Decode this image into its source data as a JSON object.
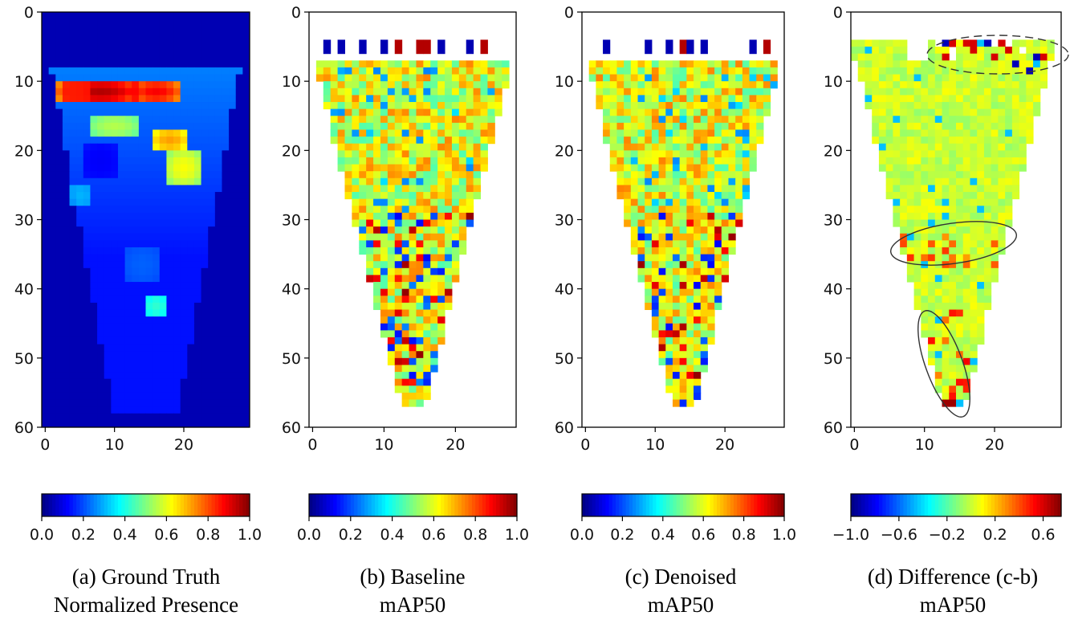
{
  "chart_data": [
    {
      "type": "heatmap",
      "title": "",
      "caption": [
        "(a) Ground Truth",
        "Normalized Presence"
      ],
      "x_ticks": [
        0,
        10,
        20
      ],
      "y_ticks": [
        0,
        10,
        20,
        30,
        40,
        50,
        60
      ],
      "xlim": [
        -0.5,
        29.5
      ],
      "ylim": [
        60,
        0
      ],
      "grid": false,
      "colormap": "jet",
      "colorbar_ticks": [
        "0.0",
        "0.2",
        "0.4",
        "0.6",
        "0.8",
        "1.0"
      ],
      "colorbar_range": [
        0.0,
        1.0
      ],
      "background_value": 0.05,
      "regions": [
        {
          "x": 8,
          "y": 11,
          "rx": 6,
          "ry": 2,
          "value": 0.95
        },
        {
          "x": 16,
          "y": 11,
          "rx": 4,
          "ry": 2,
          "value": 0.88
        },
        {
          "x": 4,
          "y": 11,
          "rx": 3,
          "ry": 2,
          "value": 0.85
        },
        {
          "x": 18,
          "y": 18,
          "rx": 3,
          "ry": 2,
          "value": 0.72
        },
        {
          "x": 20,
          "y": 22,
          "rx": 3,
          "ry": 3,
          "value": 0.62
        },
        {
          "x": 10,
          "y": 16,
          "rx": 4,
          "ry": 2,
          "value": 0.55
        },
        {
          "x": 8,
          "y": 21,
          "rx": 3,
          "ry": 3,
          "value": 0.12
        },
        {
          "x": 5,
          "y": 26,
          "rx": 2,
          "ry": 2,
          "value": 0.3
        },
        {
          "x": 16,
          "y": 42,
          "rx": 2,
          "ry": 2,
          "value": 0.42
        },
        {
          "x": 14,
          "y": 36,
          "rx": 3,
          "ry": 3,
          "value": 0.22
        }
      ]
    },
    {
      "type": "heatmap",
      "title": "",
      "caption": [
        "(b) Baseline",
        "mAP50"
      ],
      "x_ticks": [
        0,
        10,
        20
      ],
      "y_ticks": [
        0,
        10,
        20,
        30,
        40,
        50,
        60
      ],
      "xlim": [
        -0.5,
        28.5
      ],
      "ylim": [
        60,
        0
      ],
      "grid": false,
      "colormap": "jet",
      "colorbar_ticks": [
        "0.0",
        "0.2",
        "0.4",
        "0.6",
        "0.8",
        "1.0"
      ],
      "colorbar_range": [
        0.0,
        1.0
      ],
      "region_shape": "inverted-triangle, rows 7 to 56, width 28 cells at top narrowing to 4 cells at bottom",
      "typical_value_range": [
        0.45,
        0.75
      ],
      "scattered_extremes": "blue and dark red cells near edges and lower half"
    },
    {
      "type": "heatmap",
      "title": "",
      "caption": [
        "(c) Denoised",
        "mAP50"
      ],
      "x_ticks": [
        0,
        10,
        20
      ],
      "y_ticks": [
        0,
        10,
        20,
        30,
        40,
        50,
        60
      ],
      "xlim": [
        -0.5,
        28.5
      ],
      "ylim": [
        60,
        0
      ],
      "grid": false,
      "colormap": "jet",
      "colorbar_ticks": [
        "0.0",
        "0.2",
        "0.4",
        "0.6",
        "0.8",
        "1.0"
      ],
      "colorbar_range": [
        0.0,
        1.0
      ],
      "region_shape": "inverted-triangle, rows 7 to 56, width 28 cells at top narrowing to 4 cells at bottom",
      "typical_value_range": [
        0.45,
        0.75
      ],
      "scattered_extremes": "blue and dark red cells near edges and lower half"
    },
    {
      "type": "heatmap",
      "title": "",
      "caption": [
        "(d) Difference (c-b)",
        "mAP50"
      ],
      "x_ticks": [
        0,
        10,
        20
      ],
      "y_ticks": [
        0,
        10,
        20,
        30,
        40,
        50,
        60
      ],
      "xlim": [
        -0.5,
        29.5
      ],
      "ylim": [
        60,
        0
      ],
      "grid": false,
      "colormap": "jet",
      "colorbar_ticks": [
        "−1.0",
        "−0.6",
        "−0.2",
        "0.2",
        "0.6"
      ],
      "colorbar_range": [
        -1.0,
        0.75
      ],
      "typical_value": 0.0,
      "annotations": [
        {
          "shape": "ellipse",
          "style": "dashed",
          "around": "top edge rows 4-9, columns 10-29"
        },
        {
          "shape": "ellipse",
          "style": "solid",
          "around": "rows 31-37, columns 6-22"
        },
        {
          "shape": "ellipse",
          "style": "solid",
          "around": "rows 44-58, columns 9-17"
        }
      ]
    }
  ]
}
